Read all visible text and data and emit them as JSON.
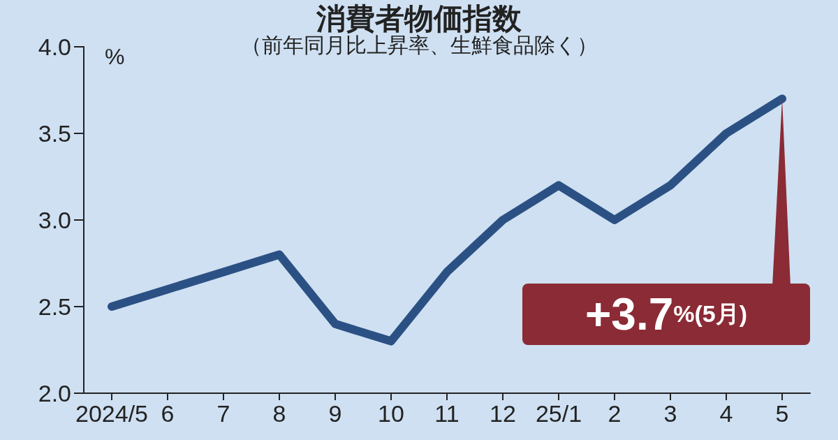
{
  "chart_data": {
    "type": "line",
    "title": "消費者物価指数",
    "subtitle": "（前年同月比上昇率、生鮮食品除く）",
    "ylabel": "%",
    "categories": [
      "2024/5",
      "6",
      "7",
      "8",
      "9",
      "10",
      "11",
      "12",
      "25/1",
      "2",
      "3",
      "4",
      "5"
    ],
    "series": [
      {
        "color": "#2b5184",
        "values": [
          2.5,
          2.6,
          2.7,
          2.8,
          2.4,
          2.3,
          2.7,
          3.0,
          3.2,
          3.0,
          3.2,
          3.5,
          3.7
        ]
      }
    ],
    "ylim": [
      2,
      4
    ],
    "yticks": [
      {
        "value": 2,
        "label": "2.0"
      },
      {
        "value": 2.5,
        "label": "2.5"
      },
      {
        "value": 3,
        "label": "3.0"
      },
      {
        "value": 3.5,
        "label": "3.5"
      },
      {
        "value": 4,
        "label": "4.0"
      }
    ],
    "grid": false,
    "line_style": "solid",
    "annotations": [
      {
        "text": "+3.7%(5月)",
        "x": "5",
        "y": 3.7
      }
    ]
  }
}
